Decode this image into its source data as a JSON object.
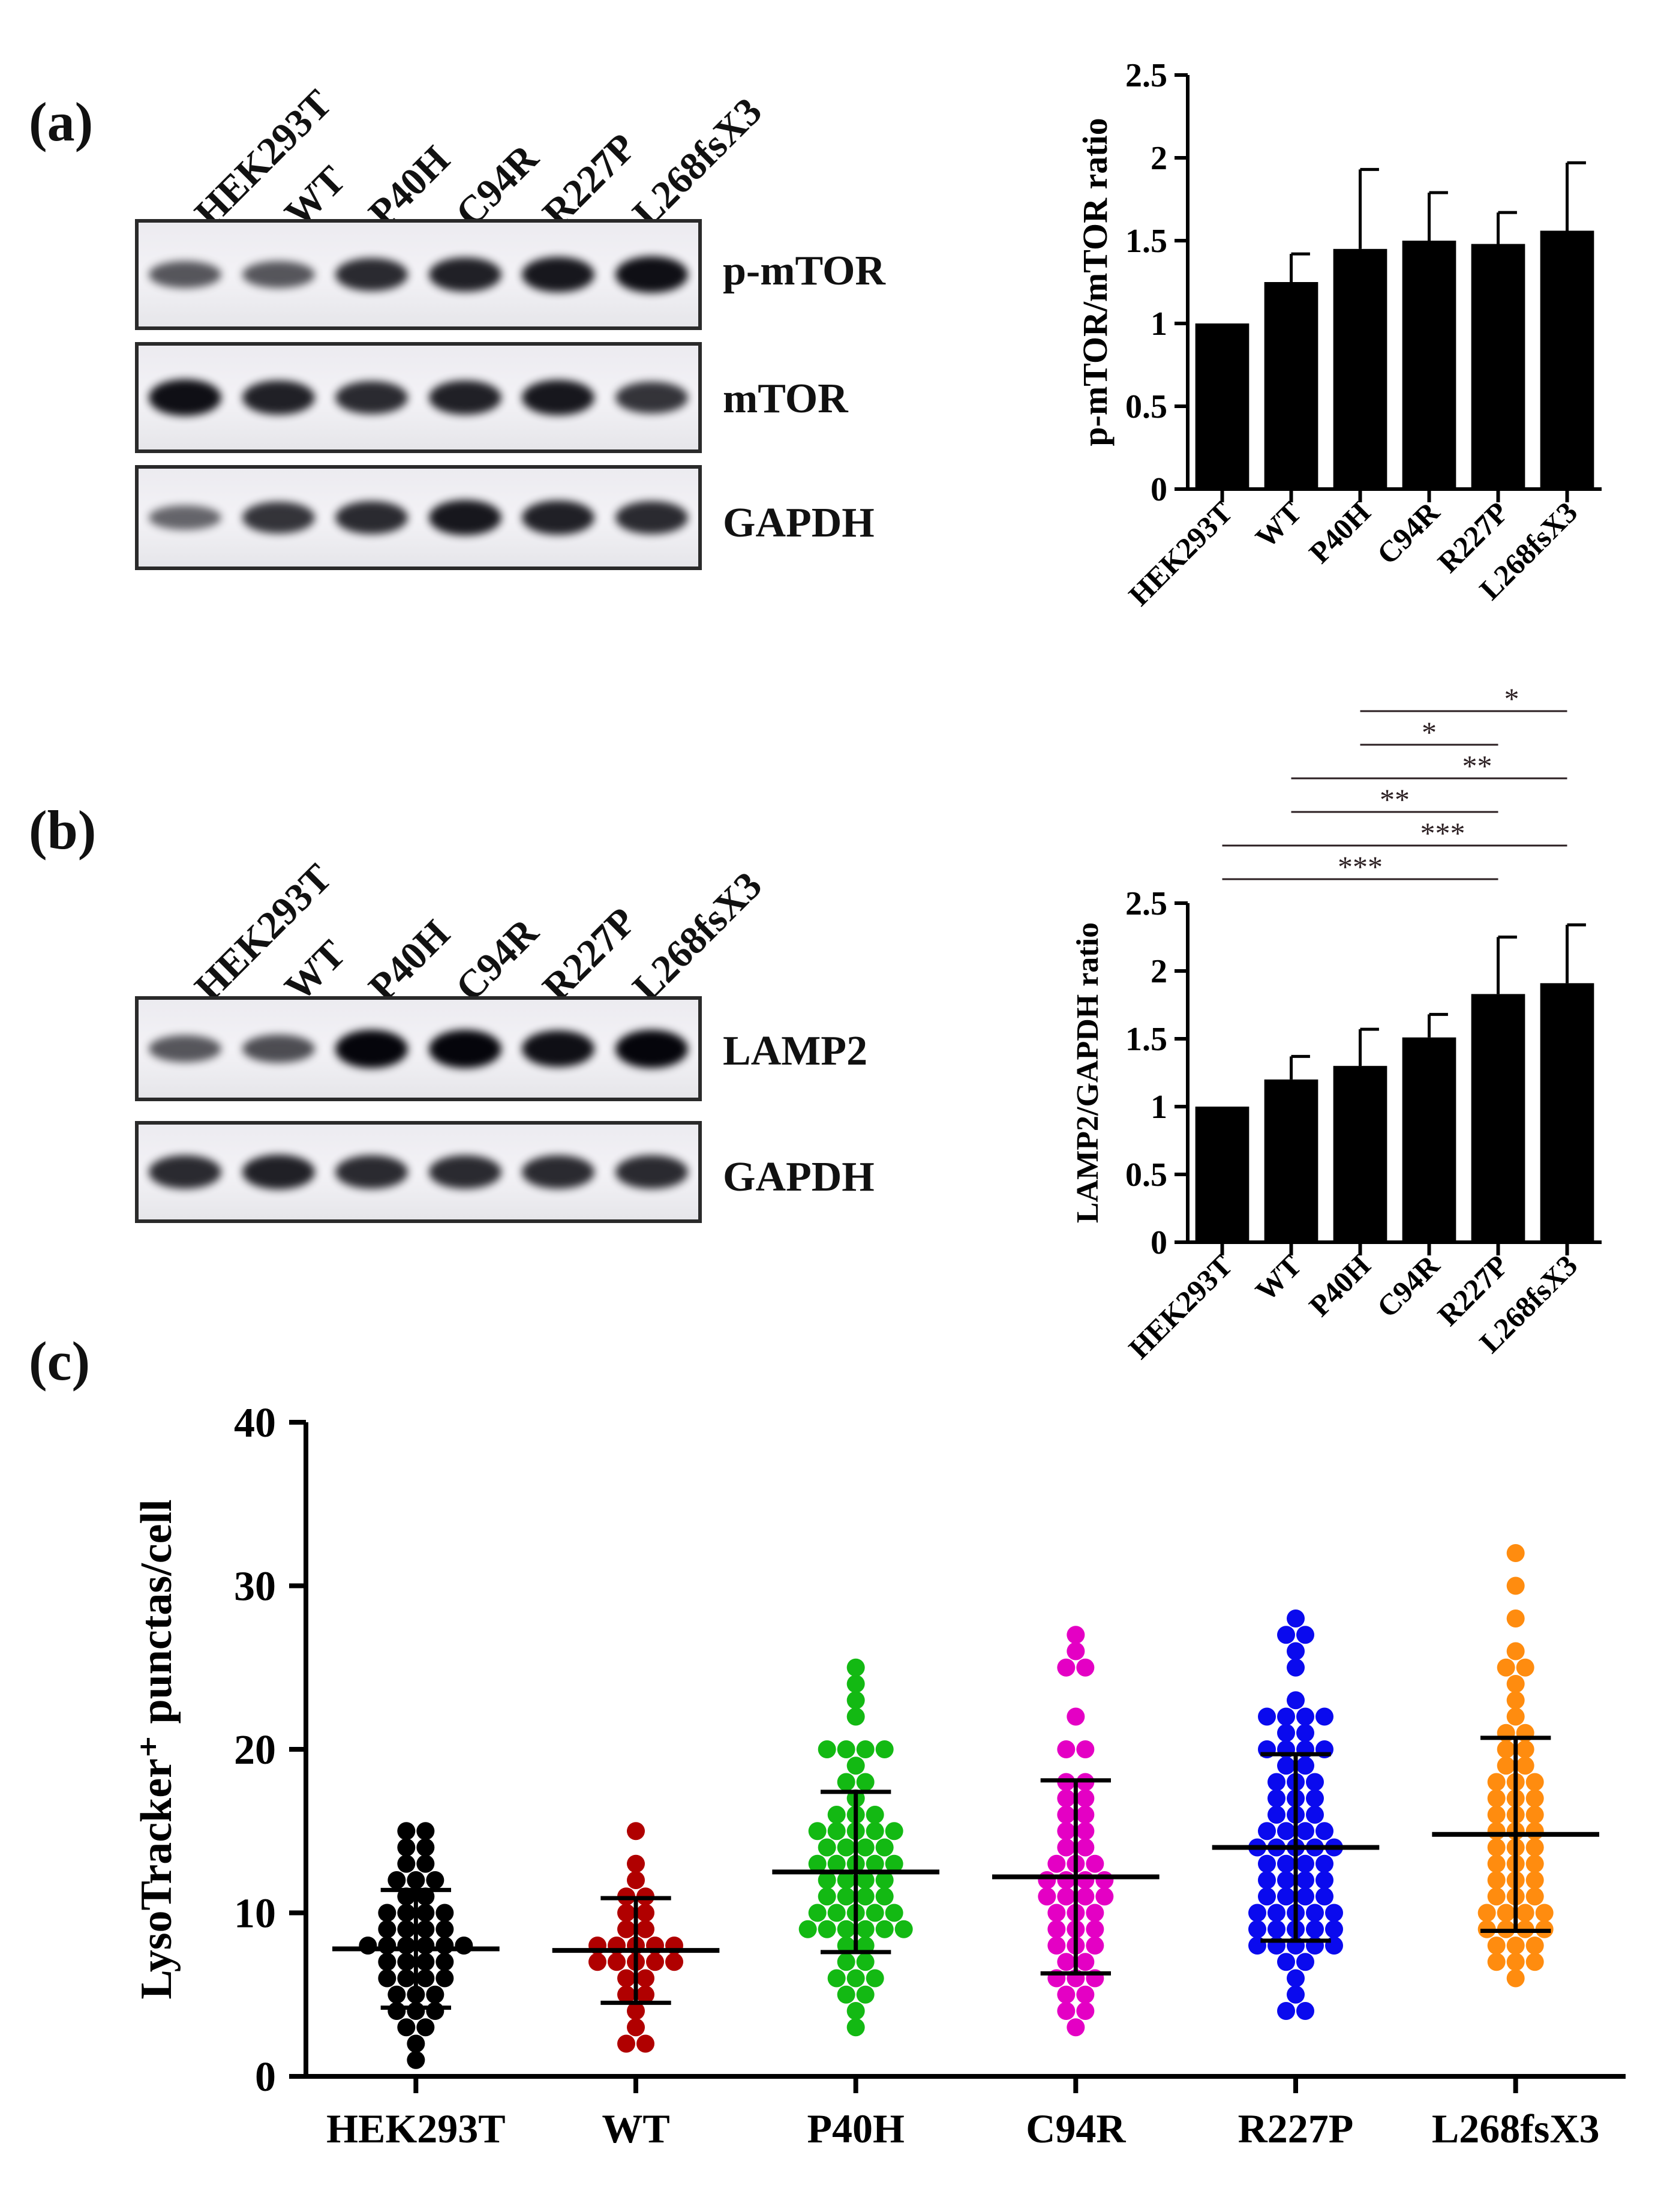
{
  "panel_a": {
    "label": "(a)",
    "lanes": [
      "HEK293T",
      "WT",
      "P40H",
      "C94R",
      "R227P",
      "L268fsX3"
    ],
    "blots": [
      {
        "name": "p-mTOR",
        "band_intensity": [
          0.55,
          0.55,
          0.8,
          0.85,
          0.9,
          0.95
        ]
      },
      {
        "name": "mTOR",
        "band_intensity": [
          0.95,
          0.85,
          0.8,
          0.85,
          0.9,
          0.75
        ]
      },
      {
        "name": "GAPDH",
        "band_intensity": [
          0.45,
          0.75,
          0.8,
          0.9,
          0.85,
          0.8
        ]
      }
    ]
  },
  "panel_b": {
    "label": "(b)",
    "lanes": [
      "HEK293T",
      "WT",
      "P40H",
      "C94R",
      "R227P",
      "L268fsX3"
    ],
    "blots": [
      {
        "name": "LAMP2",
        "band_intensity": [
          0.55,
          0.6,
          1.0,
          1.0,
          0.95,
          1.0
        ]
      },
      {
        "name": "GAPDH",
        "band_intensity": [
          0.8,
          0.85,
          0.8,
          0.8,
          0.8,
          0.8
        ]
      }
    ]
  },
  "panel_c": {
    "label": "(c)"
  },
  "chart_data": [
    {
      "id": "a-bar",
      "type": "bar",
      "title": "",
      "categories": [
        "HEK293T",
        "WT",
        "P40H",
        "C94R",
        "R227P",
        "L268fsX3"
      ],
      "values": [
        1.0,
        1.25,
        1.45,
        1.5,
        1.48,
        1.56
      ],
      "errors": [
        0,
        0.17,
        0.48,
        0.29,
        0.19,
        0.41
      ],
      "ylabel": "p-mTOR/mTOR ratio",
      "xlabel": "",
      "ylim": [
        0,
        2.5
      ],
      "yticks": [
        0,
        0.5,
        1,
        1.5,
        2,
        2.5
      ],
      "ytick_labels": [
        "0",
        "0.5",
        "1",
        "1.5",
        "2",
        "2.5"
      ],
      "bar_color": "#000000"
    },
    {
      "id": "b-bar",
      "type": "bar",
      "title": "",
      "categories": [
        "HEK293T",
        "WT",
        "P40H",
        "C94R",
        "R227P",
        "L268fsX3"
      ],
      "values": [
        1.0,
        1.2,
        1.3,
        1.51,
        1.83,
        1.91
      ],
      "errors": [
        0,
        0.17,
        0.27,
        0.17,
        0.42,
        0.43
      ],
      "ylabel": "LAMP2/GAPDH ratio",
      "xlabel": "",
      "ylim": [
        0,
        2.5
      ],
      "yticks": [
        0,
        0.5,
        1,
        1.5,
        2,
        2.5
      ],
      "ytick_labels": [
        "0",
        "0.5",
        "1",
        "1.5",
        "2",
        "2.5"
      ],
      "bar_color": "#000000",
      "significance": [
        {
          "from": "HEK293T",
          "to": "R227P",
          "label": "***"
        },
        {
          "from": "HEK293T",
          "to": "L268fsX3",
          "label": "***"
        },
        {
          "from": "WT",
          "to": "R227P",
          "label": "**"
        },
        {
          "from": "WT",
          "to": "L268fsX3",
          "label": "**"
        },
        {
          "from": "P40H",
          "to": "R227P",
          "label": "*"
        },
        {
          "from": "P40H",
          "to": "L268fsX3",
          "label": "*"
        }
      ]
    },
    {
      "id": "c-scatter",
      "type": "scatter",
      "title": "",
      "ylabel": "LysoTracker⁺ punctas/cell",
      "xlabel": "",
      "ylim": [
        0,
        40
      ],
      "yticks": [
        0,
        10,
        20,
        30,
        40
      ],
      "ytick_labels": [
        "0",
        "10",
        "20",
        "30",
        "40"
      ],
      "groups": [
        {
          "name": "HEK293T",
          "color": "#000000",
          "mean": 7.8,
          "sd": 3.6,
          "points": [
            15,
            15,
            14,
            14,
            13,
            13,
            12,
            12,
            12,
            11,
            11,
            10,
            10,
            10,
            10,
            9,
            9,
            9,
            9,
            8,
            8,
            8,
            8,
            8,
            8,
            7,
            7,
            7,
            7,
            6,
            6,
            6,
            6,
            5,
            5,
            5,
            4,
            4,
            4,
            3,
            3,
            2,
            1
          ]
        },
        {
          "name": "WT",
          "color": "#b00000",
          "mean": 7.7,
          "sd": 3.2,
          "points": [
            15,
            13,
            12,
            11,
            11,
            10,
            10,
            9,
            9,
            8,
            8,
            8,
            8,
            8,
            7,
            7,
            7,
            7,
            7,
            6,
            6,
            5,
            5,
            4,
            3,
            2,
            2
          ]
        },
        {
          "name": "P40H",
          "color": "#13b913",
          "mean": 12.5,
          "sd": 4.9,
          "points": [
            25,
            24,
            23,
            22,
            20,
            20,
            20,
            20,
            19,
            18,
            18,
            17,
            16,
            16,
            16,
            15,
            15,
            15,
            15,
            15,
            14,
            14,
            14,
            14,
            13,
            13,
            13,
            13,
            13,
            12,
            12,
            12,
            12,
            11,
            11,
            11,
            11,
            10,
            10,
            10,
            10,
            10,
            9,
            9,
            9,
            9,
            9,
            9,
            8,
            8,
            7,
            7,
            6,
            6,
            6,
            5,
            5,
            4,
            3
          ]
        },
        {
          "name": "C94R",
          "color": "#e400c4",
          "mean": 12.2,
          "sd": 5.9,
          "points": [
            27,
            26,
            25,
            25,
            22,
            20,
            20,
            18,
            18,
            17,
            17,
            16,
            16,
            15,
            15,
            14,
            14,
            13,
            13,
            13,
            12,
            12,
            12,
            12,
            11,
            11,
            11,
            11,
            10,
            10,
            10,
            9,
            9,
            9,
            8,
            8,
            8,
            7,
            7,
            6,
            6,
            6,
            5,
            5,
            4,
            4,
            3
          ]
        },
        {
          "name": "R227P",
          "color": "#0a0aee",
          "mean": 14.0,
          "sd": 5.7,
          "points": [
            28,
            27,
            27,
            26,
            25,
            23,
            22,
            22,
            22,
            22,
            21,
            21,
            20,
            20,
            20,
            20,
            19,
            19,
            18,
            18,
            18,
            17,
            17,
            17,
            16,
            16,
            16,
            15,
            15,
            15,
            15,
            14,
            14,
            14,
            14,
            14,
            13,
            13,
            13,
            13,
            12,
            12,
            12,
            12,
            11,
            11,
            11,
            11,
            10,
            10,
            10,
            10,
            10,
            9,
            9,
            9,
            9,
            9,
            8,
            8,
            8,
            8,
            8,
            7,
            7,
            6,
            5,
            4,
            4
          ]
        },
        {
          "name": "L268fsX3",
          "color": "#ff8c0f",
          "mean": 14.8,
          "sd": 5.9,
          "points": [
            32,
            30,
            28,
            26,
            25,
            25,
            24,
            23,
            22,
            21,
            21,
            20,
            20,
            19,
            19,
            18,
            18,
            18,
            17,
            17,
            17,
            16,
            16,
            16,
            15,
            15,
            15,
            14,
            14,
            14,
            13,
            13,
            13,
            12,
            12,
            12,
            11,
            11,
            11,
            10,
            10,
            10,
            10,
            9,
            9,
            9,
            9,
            8,
            8,
            8,
            7,
            7,
            7,
            6
          ]
        }
      ]
    }
  ]
}
